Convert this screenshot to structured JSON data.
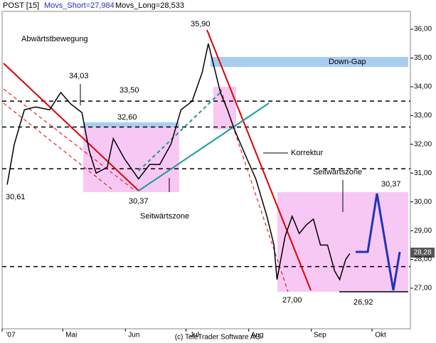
{
  "chart_data": {
    "type": "line",
    "title": "POST [15]",
    "subtitle": "Movs_Short=27,984",
    "subtitle2": "Movs_Long=28,533",
    "footer": "(c) TeleTrader Software AG",
    "xlim": [
      0,
      202
    ],
    "xticks": [
      {
        "value": 0,
        "label": "'07"
      },
      {
        "value": 30,
        "label": "Mai"
      },
      {
        "value": 61,
        "label": "Jun"
      },
      {
        "value": 91,
        "label": "Jul"
      },
      {
        "value": 122,
        "label": "Aug"
      },
      {
        "value": 153,
        "label": "Sep"
      },
      {
        "value": 183,
        "label": "Okt"
      }
    ],
    "ylim": [
      25.59,
      36.62
    ],
    "yticks": [
      {
        "value": 27,
        "label": "27,00"
      },
      {
        "value": 28,
        "label": "28,00"
      },
      {
        "value": 29,
        "label": "29,00"
      },
      {
        "value": 30,
        "label": "30,00"
      },
      {
        "value": 31,
        "label": "31,00"
      },
      {
        "value": 32,
        "label": "32,00"
      },
      {
        "value": 33,
        "label": "33,00"
      },
      {
        "value": 34,
        "label": "34,00"
      },
      {
        "value": 35,
        "label": "35,00"
      },
      {
        "value": 36,
        "label": "36,00"
      }
    ],
    "levels": [
      33.5,
      32.6,
      31.15,
      27.75
    ],
    "last_price": "28,28",
    "series": [
      {
        "name": "POST",
        "color": "#000000",
        "x": [
          2.5,
          6,
          11,
          16.5,
          23.5,
          29,
          34,
          39.5,
          43,
          46.5,
          52,
          55,
          60.5,
          67.5,
          73,
          78,
          83.5,
          88.5,
          94,
          99,
          102,
          104.5,
          108,
          111.5,
          115,
          120.5,
          125.5,
          131,
          134.5,
          136,
          140,
          143.5,
          147,
          150.5,
          154,
          157.5,
          161,
          164.5,
          167,
          170,
          172
        ],
        "values": [
          30.6,
          32,
          33.2,
          33.3,
          33.2,
          33.8,
          33.4,
          33.1,
          31.8,
          31,
          31.2,
          32.2,
          31.5,
          30.8,
          31.3,
          31.3,
          32,
          33.2,
          33.5,
          34.5,
          35.5,
          34.8,
          33.8,
          33.2,
          32.5,
          31.6,
          30.8,
          29.5,
          28.5,
          27.3,
          28.8,
          29.5,
          28.9,
          29.2,
          29.4,
          28.5,
          28.5,
          27.6,
          27.3,
          28.0,
          28.2
        ]
      }
    ],
    "annotations": [
      "Abwärtstbewegung",
      "34,03",
      "35,90",
      "33,50",
      "32,60",
      "Down-Gap",
      "30,61",
      "30,37",
      "Seitwärtszone",
      "Korrektur",
      "Seitwärtszone",
      "30,37",
      "27,00",
      "26,92"
    ]
  }
}
